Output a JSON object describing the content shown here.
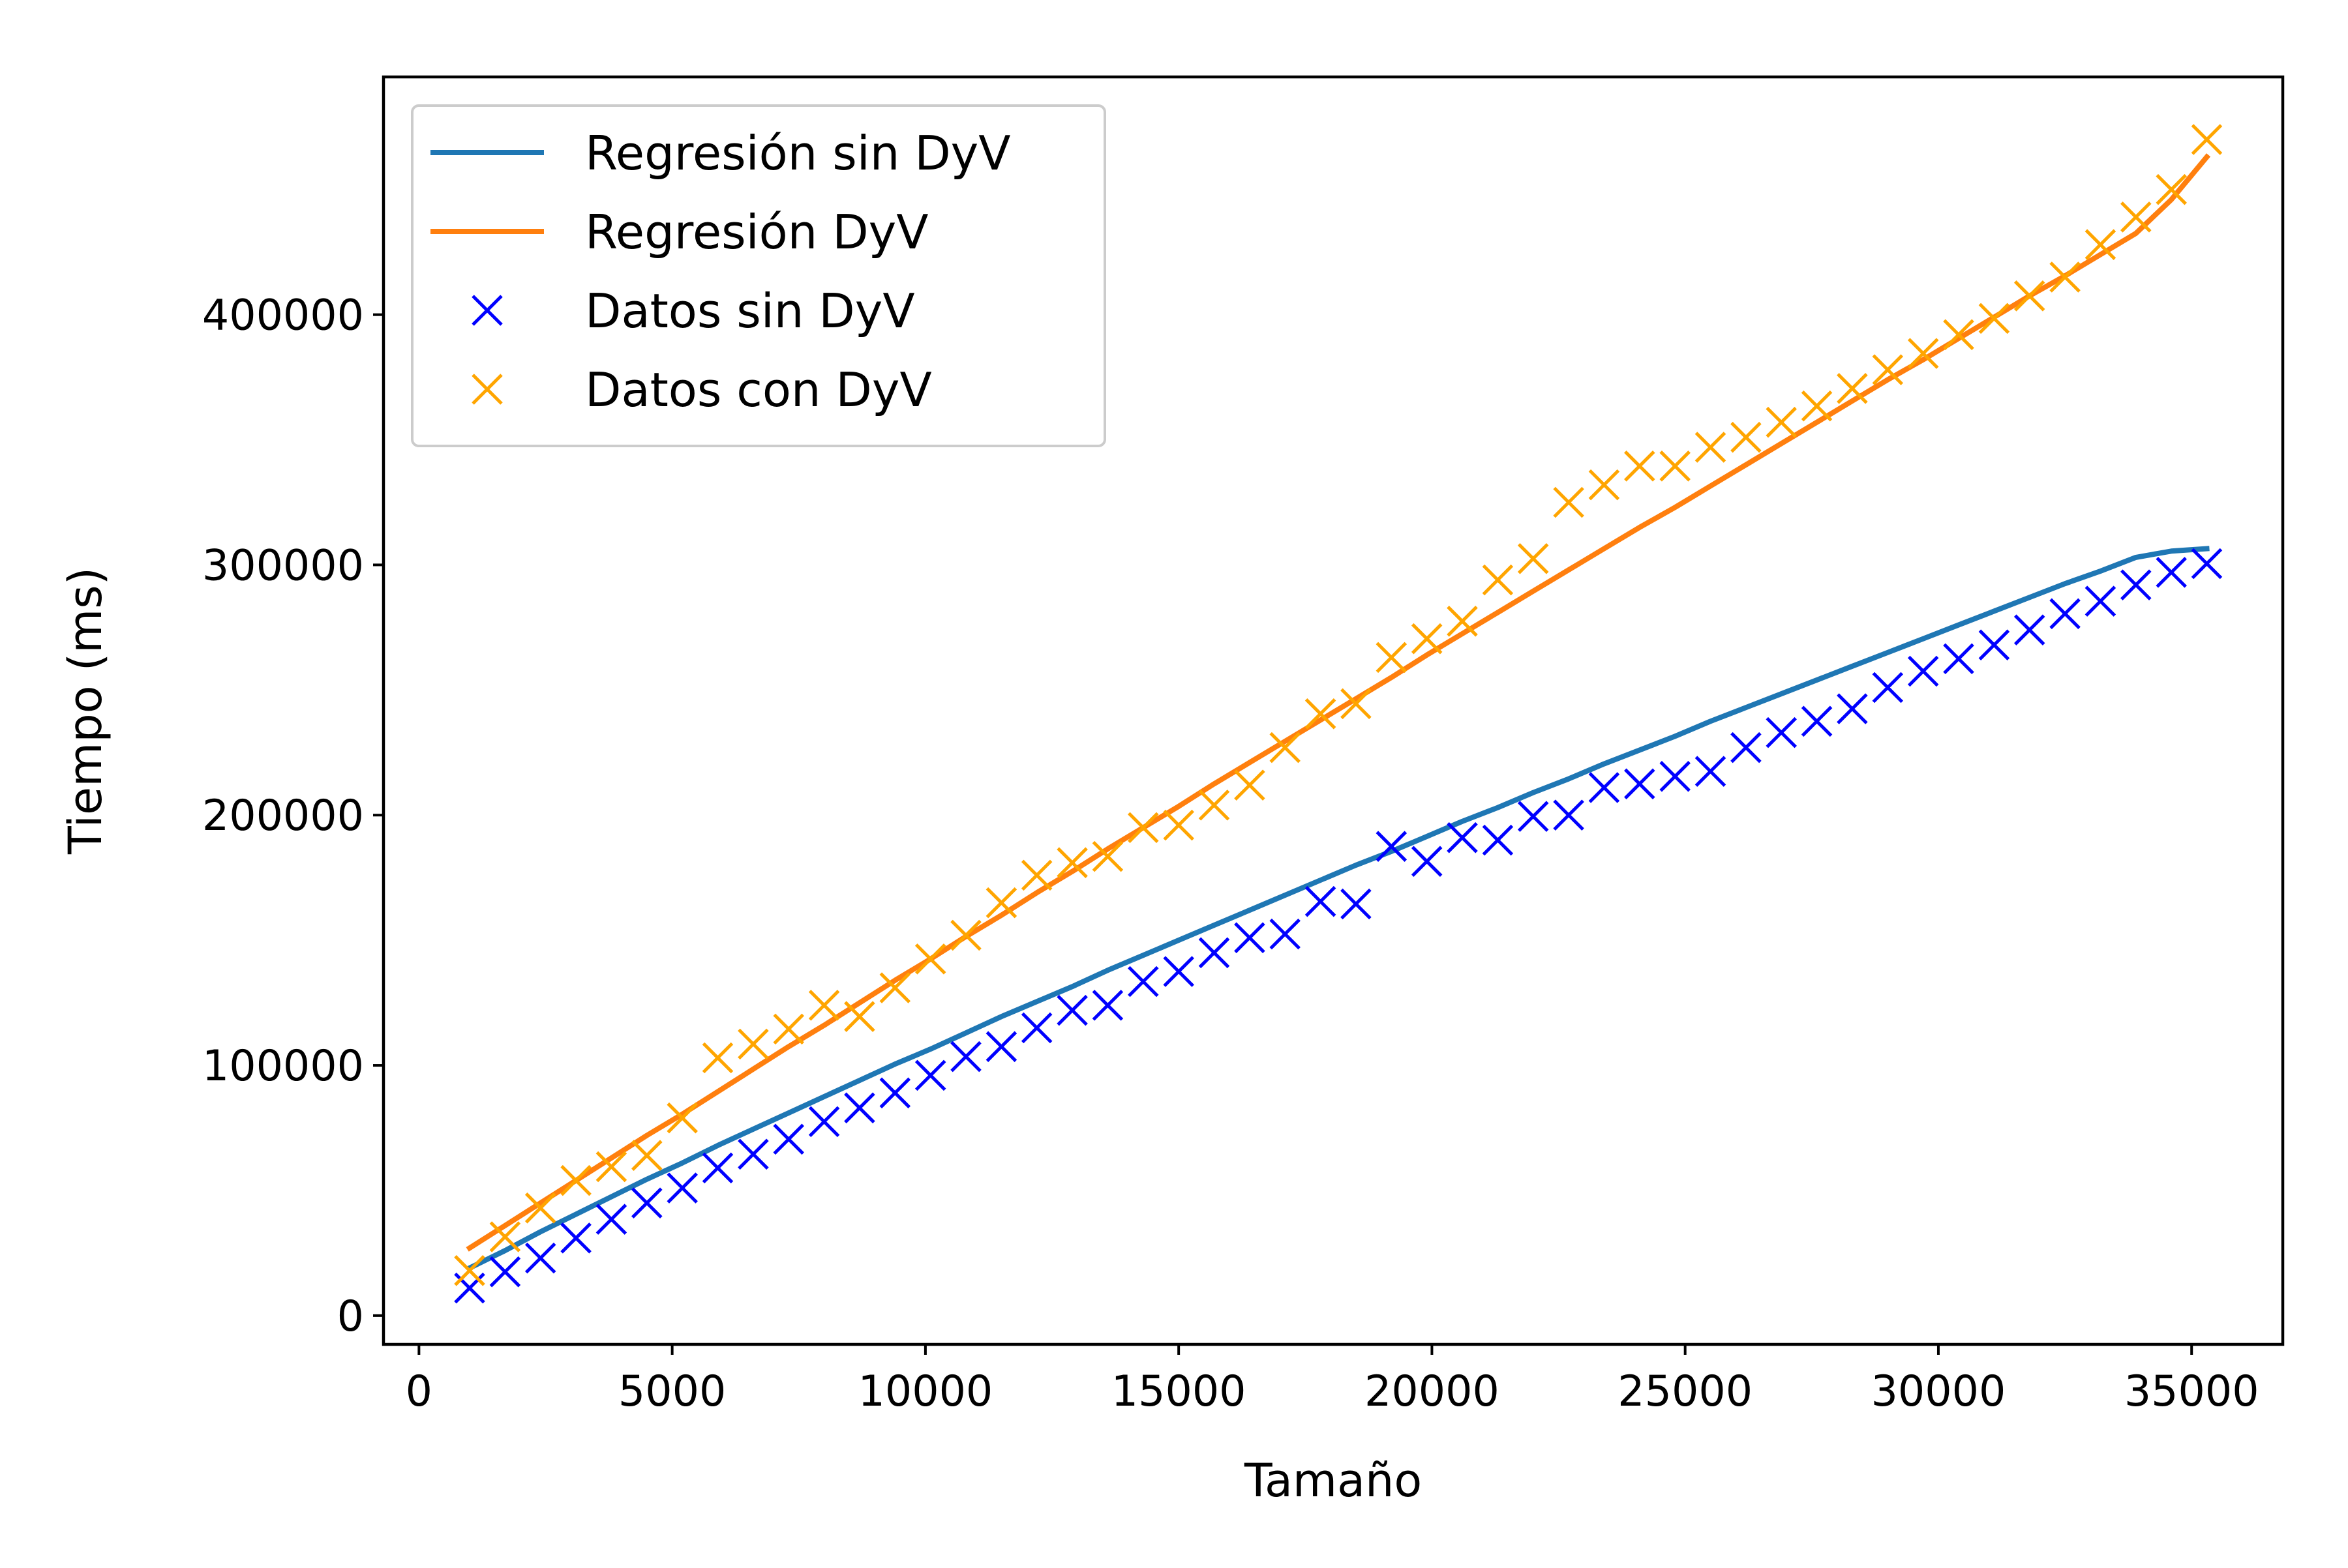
{
  "chart_data": {
    "type": "scatter",
    "title": "",
    "xlabel": "Tamaño",
    "ylabel": "Tiempo (ms)",
    "xlim": [
      -700,
      36800
    ],
    "ylim": [
      -11500,
      495000
    ],
    "xticks": [
      0,
      5000,
      10000,
      15000,
      20000,
      25000,
      30000,
      35000
    ],
    "xtick_labels": [
      "0",
      "5000",
      "10000",
      "15000",
      "20000",
      "25000",
      "30000",
      "35000"
    ],
    "yticks": [
      0,
      100000,
      200000,
      300000,
      400000
    ],
    "ytick_labels": [
      "0",
      "100000",
      "200000",
      "300000",
      "400000"
    ],
    "grid": false,
    "legend_position": "top-left",
    "x": [
      1000,
      1700,
      2400,
      3100,
      3800,
      4500,
      5200,
      5900,
      6600,
      7300,
      8000,
      8700,
      9400,
      10100,
      10800,
      11500,
      12200,
      12900,
      13600,
      14300,
      15000,
      15700,
      16400,
      17100,
      17800,
      18500,
      19200,
      19900,
      20600,
      21300,
      22000,
      22700,
      23400,
      24100,
      24800,
      25500,
      26200,
      26900,
      27600,
      28300,
      29000,
      29700,
      30400,
      31100,
      31800,
      32500,
      33200,
      33900,
      34600,
      35300
    ],
    "series": [
      {
        "name": "Regresión sin DyV",
        "kind": "line",
        "color": "#1f77b4",
        "values": [
          19000,
          26000,
          33500,
          40500,
          47500,
          54500,
          61000,
          68000,
          74500,
          81000,
          87500,
          94000,
          100500,
          106500,
          113000,
          119500,
          125500,
          131500,
          138000,
          144000,
          150000,
          156000,
          162000,
          168000,
          174000,
          180000,
          185500,
          191500,
          197500,
          203000,
          209000,
          214500,
          220500,
          226000,
          231500,
          237500,
          243000,
          248500,
          254000,
          259500,
          265000,
          270500,
          276000,
          281500,
          287000,
          292500,
          297500,
          303000,
          305500,
          306500
        ]
      },
      {
        "name": "Regresión DyV",
        "kind": "line",
        "color": "#ff7f0e",
        "values": [
          27000,
          36000,
          45000,
          54000,
          63000,
          72000,
          80500,
          89500,
          98500,
          107500,
          116000,
          125000,
          134000,
          142500,
          151500,
          160000,
          169000,
          177500,
          186500,
          195000,
          203500,
          212500,
          221000,
          229500,
          238000,
          246500,
          255000,
          264000,
          272500,
          281000,
          289500,
          298000,
          306500,
          315000,
          323000,
          331500,
          340000,
          348500,
          357000,
          365500,
          374000,
          382000,
          390500,
          399000,
          407500,
          415500,
          424000,
          432500,
          446000,
          463000
        ]
      },
      {
        "name": "Datos sin DyV",
        "kind": "scatter",
        "marker": "x",
        "color": "#0000ff",
        "values": [
          11000,
          17500,
          23000,
          31000,
          38500,
          45000,
          51000,
          59000,
          64500,
          70500,
          77500,
          83000,
          89000,
          96000,
          103500,
          107500,
          115000,
          122000,
          124000,
          133500,
          137500,
          145000,
          151000,
          152500,
          165500,
          164500,
          187500,
          181500,
          191000,
          190000,
          199500,
          200000,
          211000,
          212500,
          215500,
          217500,
          227000,
          233000,
          237500,
          242500,
          251000,
          257500,
          262500,
          268000,
          274000,
          280500,
          285500,
          292000,
          297000,
          300500
        ]
      },
      {
        "name": "Datos con DyV",
        "kind": "scatter",
        "marker": "x",
        "color": "#ffa500",
        "values": [
          18000,
          31500,
          43000,
          54000,
          59500,
          64000,
          79000,
          103000,
          108500,
          114500,
          124000,
          119500,
          131000,
          142500,
          152000,
          165000,
          176000,
          181000,
          183500,
          195000,
          196000,
          204000,
          212000,
          227000,
          240500,
          244500,
          263000,
          270500,
          277500,
          294000,
          302500,
          325000,
          332000,
          339500,
          339500,
          347000,
          351000,
          357000,
          363500,
          370500,
          378000,
          384500,
          392000,
          398500,
          407500,
          415000,
          428000,
          439000,
          450000,
          470000
        ]
      }
    ]
  }
}
